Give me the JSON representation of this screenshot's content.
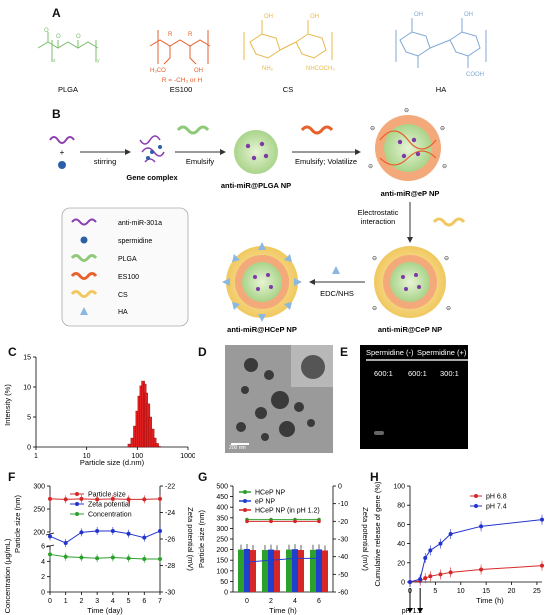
{
  "panels": {
    "a": "A",
    "b": "B",
    "c": "C",
    "d": "D",
    "e": "E",
    "f": "F",
    "g": "G",
    "h": "H"
  },
  "panel_a": {
    "polymers": [
      "PLGA",
      "ES100",
      "CS",
      "HA"
    ],
    "es100_note": "R = -CH₃ or H",
    "es100_side": "R",
    "es100_ester": "H₃CO",
    "cs_groups": [
      "NH₂",
      "NHCOCH₃"
    ],
    "colors": {
      "plga": "#7bbf6a",
      "es100": "#e8602c",
      "cs": "#e8b84a",
      "ha": "#7fa7d4"
    }
  },
  "panel_b": {
    "stirring": "stirring",
    "plus": "+",
    "gene_complex": "Gene complex",
    "emulsify": "Emulsify",
    "emulsify_volatilize": "Emulsify; Volatilize",
    "np1": "anti-miR@PLGA NP",
    "np2": "anti-miR@eP NP",
    "electrostatic": [
      "Electrostatic",
      "interaction"
    ],
    "edc": "EDC/NHS",
    "np3": "anti-miR@CeP NP",
    "np4": "anti-miR@HCeP NP",
    "legend": [
      "anti-miR-301a",
      "spermidine",
      "PLGA",
      "ES100",
      "CS",
      "HA"
    ]
  },
  "panel_c": {
    "ylabel": "Intensity (%)",
    "xlabel": "Particle size (d.nm)",
    "xticks": [
      "1",
      "10",
      "100",
      "1000"
    ],
    "yticks": [
      "0",
      "5",
      "10",
      "15"
    ]
  },
  "panel_d": {
    "scale_bar": "200 nm"
  },
  "panel_e": {
    "labels": [
      "Spermidine (-)",
      "Spermidine (+)"
    ],
    "ratios": [
      "600:1",
      "600:1",
      "300:1"
    ]
  },
  "chart_data": [
    {
      "type": "bar",
      "panel": "C",
      "xlabel": "Particle size (d.nm)",
      "ylabel": "Intensity (%)",
      "x_scale": "log",
      "xlim": [
        1,
        1000
      ],
      "ylim": [
        0,
        15
      ],
      "x": [
        70,
        80,
        90,
        100,
        110,
        120,
        130,
        140,
        150,
        165,
        180,
        200,
        220,
        245,
        270
      ],
      "values": [
        0.5,
        1.5,
        3.5,
        6.0,
        8.5,
        10.2,
        11.0,
        10.5,
        9.0,
        7.2,
        5.0,
        3.0,
        1.5,
        0.6,
        0.1
      ]
    },
    {
      "type": "line",
      "panel": "F",
      "xlabel": "Time (day)",
      "ylabel": "Concentration (μg/mL)",
      "ylabel_mid": "Particle size (nm)",
      "y2label": "Zeta potential (mV)",
      "x": [
        0,
        1,
        2,
        3,
        4,
        5,
        6,
        7
      ],
      "xticks": [
        "0",
        "1",
        "2",
        "3",
        "4",
        "5",
        "6",
        "7"
      ],
      "yticks_left": [
        "0",
        "2",
        "4",
        "6",
        "200",
        "250",
        "300"
      ],
      "yticks_right": [
        "-30",
        "-28",
        "-26",
        "-24",
        "-22"
      ],
      "series": [
        {
          "name": "Particle size",
          "color": "#d62728",
          "axis": "left",
          "values": [
            272,
            271,
            272,
            271,
            272,
            271,
            271,
            272
          ]
        },
        {
          "name": "Zeta potential",
          "color": "#2233cc",
          "axis": "right",
          "values": [
            -25.8,
            -26.3,
            -25.5,
            -25.4,
            -25.4,
            -25.6,
            -25.9,
            -25.4
          ]
        },
        {
          "name": "Concentration",
          "color": "#2ca02c",
          "axis": "left",
          "values": [
            4.9,
            4.6,
            4.5,
            4.4,
            4.5,
            4.4,
            4.3,
            4.3
          ]
        }
      ]
    },
    {
      "type": "bar",
      "panel": "G",
      "xlabel": "Time (h)",
      "ylabel": "Particle size (nm)",
      "y2label": "Zeta potential (mV)",
      "categories": [
        "0",
        "2",
        "4",
        "6"
      ],
      "yticks_left": [
        "0",
        "50",
        "100",
        "150",
        "200",
        "250",
        "300",
        "350",
        "400",
        "450",
        "500"
      ],
      "yticks_right": [
        "-60",
        "-50",
        "-40",
        "-30",
        "-20",
        "-10",
        "0"
      ],
      "series": [
        {
          "name": "HCeP NP",
          "color": "#2ca02c",
          "values": [
            200,
            198,
            200,
            199
          ]
        },
        {
          "name": "eP NP",
          "color": "#1f3fcc",
          "values": [
            203,
            200,
            202,
            201
          ]
        },
        {
          "name": "HCeP NP (in pH 1.2)",
          "color": "#d62728",
          "values": [
            198,
            197,
            198,
            196
          ]
        }
      ],
      "zeta_series": [
        {
          "name": "HCeP NP",
          "color": "#2ca02c",
          "values": [
            -19,
            -19,
            -19,
            -19
          ]
        },
        {
          "name": "eP NP",
          "color": "#1f3fcc",
          "values": [
            -43,
            -42,
            -41,
            -41
          ]
        },
        {
          "name": "HCeP NP (in pH 1.2)",
          "color": "#d62728",
          "values": [
            -20,
            -20,
            -20,
            -20
          ]
        }
      ]
    },
    {
      "type": "line",
      "panel": "H",
      "xlabel": "Time (h)",
      "ylabel": "Cumulative release of gene (%)",
      "xticks": [
        "0",
        "5",
        "10",
        "15",
        "20",
        "25"
      ],
      "yticks": [
        "0",
        "20",
        "40",
        "60",
        "80",
        "100"
      ],
      "xlim": [
        0,
        26
      ],
      "ylim": [
        0,
        100
      ],
      "annotation": "pH 1.2",
      "series": [
        {
          "name": "pH 6.8",
          "color": "#d62728",
          "x": [
            0,
            2,
            3,
            4,
            6,
            8,
            14,
            26
          ],
          "values": [
            0,
            1,
            4,
            6,
            8,
            10,
            13,
            17
          ]
        },
        {
          "name": "pH 7.4",
          "color": "#2233cc",
          "x": [
            0,
            2,
            3,
            4,
            6,
            8,
            14,
            26
          ],
          "values": [
            0,
            3,
            25,
            33,
            40,
            50,
            58,
            65
          ]
        }
      ]
    }
  ]
}
